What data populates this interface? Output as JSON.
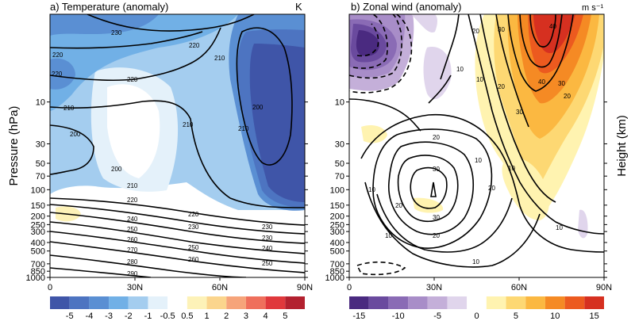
{
  "figure": {
    "left_axis_label": "Pressure (hPa)",
    "right_axis_label": "Height (km)"
  },
  "chart_data": [
    {
      "type": "heatmap",
      "title": "a) Temperature (anomaly)",
      "units": "K",
      "ylabel": "Pressure (hPa)",
      "x_ticks": [
        "0",
        "30N",
        "60N",
        "90N"
      ],
      "x_range": [
        0,
        90
      ],
      "y_ticks": [
        10,
        30,
        50,
        70,
        100,
        150,
        200,
        250,
        300,
        400,
        500,
        700,
        850,
        1000
      ],
      "y_scale": "log",
      "y_range": [
        1,
        1000
      ],
      "contour_levels": [
        "200",
        "210",
        "220",
        "230",
        "240",
        "250",
        "260",
        "270",
        "280",
        "290"
      ],
      "colorbar": {
        "labels": [
          "-5",
          "-4",
          "-3",
          "-2",
          "-1",
          "-0.5",
          "0.5",
          "1",
          "2",
          "3",
          "4",
          "5"
        ],
        "colors": [
          "#3f55a8",
          "#4d74c1",
          "#5a8fd3",
          "#71b0e6",
          "#a4cdef",
          "#e4f1fa",
          "#ffffff",
          "#fdf2b8",
          "#fbd58d",
          "#f6a47a",
          "#ef6f5c",
          "#e0383c",
          "#b3212f"
        ]
      }
    },
    {
      "type": "heatmap",
      "title": "b) Zonal wind (anomaly)",
      "units": "m s⁻¹",
      "ylabel": "Height (km)",
      "x_ticks": [
        "0",
        "30N",
        "60N",
        "90N"
      ],
      "x_range": [
        0,
        90
      ],
      "y_ticks": [
        10,
        30,
        50,
        70,
        100,
        150,
        200,
        250,
        300,
        400,
        500,
        700,
        850,
        1000
      ],
      "y_scale": "log",
      "contour_levels": [
        "10",
        "20",
        "30",
        "40"
      ],
      "colorbar": {
        "labels": [
          "-15",
          "-10",
          "-5",
          "0",
          "5",
          "10",
          "15"
        ],
        "colors": [
          "#4a2a80",
          "#6a4a9e",
          "#8a6bb5",
          "#a88dc8",
          "#c4afd9",
          "#e0d5ec",
          "#ffffff",
          "#fff3b0",
          "#fdd873",
          "#fbb841",
          "#f58a24",
          "#ec5a1f",
          "#d63020"
        ]
      }
    }
  ]
}
